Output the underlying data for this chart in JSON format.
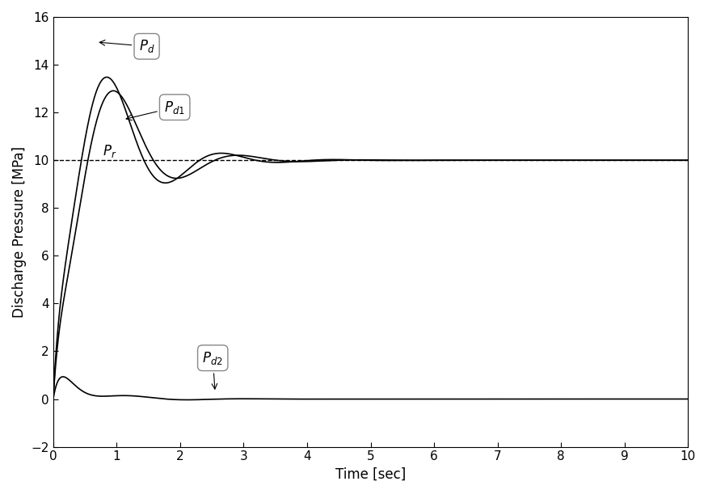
{
  "title": "",
  "xlabel": "Time [sec]",
  "ylabel": "Discharge Pressure [MPa]",
  "xlim": [
    0,
    10
  ],
  "ylim": [
    -2,
    16
  ],
  "yticks": [
    -2,
    0,
    2,
    4,
    6,
    8,
    10,
    12,
    14,
    16
  ],
  "xticks": [
    0,
    1,
    2,
    3,
    4,
    5,
    6,
    7,
    8,
    9,
    10
  ],
  "Pr_value": 10.0,
  "line_color": "#000000",
  "dashed_color": "#000000",
  "bg_color": "#ffffff"
}
